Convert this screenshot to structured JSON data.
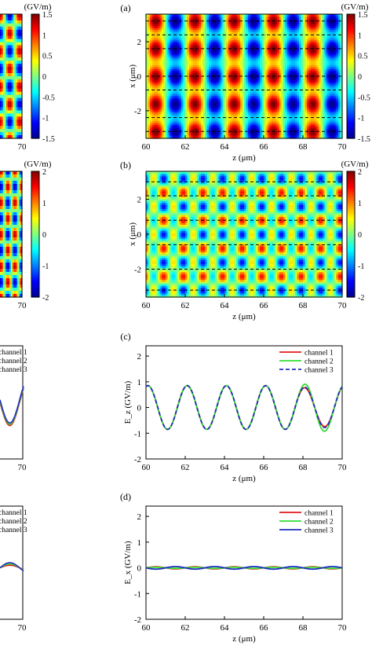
{
  "colormap": [
    "#00008f",
    "#0000ff",
    "#0080ff",
    "#00ffff",
    "#80ff80",
    "#ffff00",
    "#ff8000",
    "#ff0000",
    "#800000"
  ],
  "line_colors": {
    "channel 1": "#e41a1c",
    "channel 2": "#33dd33",
    "channel 3": "#1f2fbf"
  },
  "chart_data": [
    {
      "type": "heatmap",
      "label": "(a)",
      "xlabel": "z (μm)",
      "ylabel": "x (μm)",
      "xlim": [
        60,
        70
      ],
      "ylim": [
        -3.6,
        3.6
      ],
      "xticks": [
        "60",
        "62",
        "64",
        "66",
        "68",
        "70"
      ],
      "yticks": [
        "-2",
        "0",
        "2"
      ],
      "colorbar": {
        "unit": "(GV/m)",
        "range": [
          -1.5,
          1.5
        ],
        "ticks": [
          "1.5",
          "1",
          "0.5",
          "0",
          "-0.5",
          "-1",
          "-1.5"
        ]
      },
      "field": {
        "z_period_um": 2.0,
        "x_period_um": 1.6,
        "z_phase_um": 60.5,
        "amplitude": 1.4
      },
      "channel_boundaries_um": [
        -3.2,
        -2.4,
        -0.8,
        0.0,
        1.6,
        2.4,
        3.2
      ],
      "left_partial": {
        "colorbar_ticks": [
          "1.5",
          "1",
          "0.5",
          "0",
          "-0.5",
          "-1",
          "-1.5"
        ],
        "xtick": "70"
      }
    },
    {
      "type": "heatmap",
      "label": "(b)",
      "xlabel": "z (μm)",
      "ylabel": "x (μm)",
      "xlim": [
        60,
        70
      ],
      "ylim": [
        -3.6,
        3.6
      ],
      "xticks": [
        "60",
        "62",
        "64",
        "66",
        "68",
        "70"
      ],
      "yticks": [
        "-2",
        "0",
        "2"
      ],
      "colorbar": {
        "unit": "(GV/m)",
        "range": [
          -2,
          2
        ],
        "ticks": [
          "2",
          "1",
          "0",
          "-1",
          "-2"
        ]
      },
      "field": {
        "z_period_um": 1.0,
        "x_period_um": 1.6,
        "amplitude": 1.2
      },
      "channel_boundaries_um": [
        -3.2,
        -2.0,
        -0.6,
        0.8,
        2.2,
        3.0
      ],
      "left_partial": {
        "colorbar_ticks": [
          "2",
          "1",
          "0",
          "-1",
          "-2"
        ],
        "xtick": "70"
      }
    },
    {
      "type": "line",
      "label": "(c)",
      "xlabel": "z (μm)",
      "ylabel": "E_z (GV/m)",
      "xlim": [
        60,
        70
      ],
      "ylim": [
        -2,
        2.4
      ],
      "xticks": [
        "60",
        "62",
        "64",
        "66",
        "68",
        "70"
      ],
      "yticks": [
        "2",
        "1",
        "0",
        "-1",
        "-2"
      ],
      "legend": "top-right",
      "series": [
        {
          "name": "channel 1",
          "x": [
            60,
            60.5,
            61,
            61.5,
            62,
            62.5,
            63,
            63.5,
            64,
            64.5,
            65,
            65.5,
            66,
            66.5,
            67,
            67.5,
            68,
            68.5,
            69,
            69.5,
            70
          ],
          "y": [
            0.8,
            -0.2,
            -0.85,
            -0.2,
            0.8,
            -0.2,
            -0.85,
            -0.2,
            0.8,
            -0.2,
            -0.85,
            -0.2,
            0.8,
            -0.2,
            -0.85,
            -0.2,
            0.65,
            -0.2,
            -0.8,
            -0.2,
            0.8
          ]
        },
        {
          "name": "channel 2",
          "x": [
            60,
            60.5,
            61,
            61.5,
            62,
            62.5,
            63,
            63.5,
            64,
            64.5,
            65,
            65.5,
            66,
            66.5,
            67,
            67.5,
            68,
            68.5,
            69,
            69.5,
            70
          ],
          "y": [
            0.8,
            -0.2,
            -0.85,
            -0.2,
            0.8,
            -0.2,
            -0.85,
            -0.2,
            0.8,
            -0.2,
            -0.85,
            -0.2,
            0.8,
            -0.2,
            -0.85,
            -0.2,
            0.9,
            -0.2,
            -0.85,
            -0.2,
            0.6
          ]
        },
        {
          "name": "channel 3",
          "x": [
            60,
            60.5,
            61,
            61.5,
            62,
            62.5,
            63,
            63.5,
            64,
            64.5,
            65,
            65.5,
            66,
            66.5,
            67,
            67.5,
            68,
            68.5,
            69,
            69.5,
            70
          ],
          "y": [
            0.8,
            -0.2,
            -0.85,
            -0.2,
            0.8,
            -0.2,
            -0.85,
            -0.2,
            0.8,
            -0.2,
            -0.85,
            -0.2,
            0.8,
            -0.2,
            -0.85,
            -0.2,
            0.7,
            -0.2,
            -0.8,
            -0.2,
            0.8
          ]
        }
      ],
      "left_partial": {
        "legend": [
          "channel 1",
          "channel 2",
          "channel 3"
        ],
        "xtick": "70"
      }
    },
    {
      "type": "line",
      "label": "(d)",
      "xlabel": "z (μm)",
      "ylabel": "E_x (GV/m)",
      "xlim": [
        60,
        70
      ],
      "ylim": [
        -2,
        2.4
      ],
      "xticks": [
        "60",
        "62",
        "64",
        "66",
        "68",
        "70"
      ],
      "yticks": [
        "2",
        "1",
        "0",
        "-1",
        "-2"
      ],
      "legend": "top-right",
      "series": [
        {
          "name": "channel 1",
          "x": [
            60,
            60.5,
            61,
            61.5,
            62,
            62.5,
            63,
            63.5,
            64,
            64.5,
            65,
            65.5,
            66,
            66.5,
            67,
            67.5,
            68,
            68.5,
            69,
            69.5,
            70
          ],
          "y": [
            0,
            0.04,
            0,
            -0.04,
            0,
            0.04,
            0,
            -0.04,
            0,
            0.04,
            0,
            -0.04,
            0,
            0.04,
            0,
            -0.04,
            0,
            0.04,
            0,
            -0.04,
            0
          ]
        },
        {
          "name": "channel 2",
          "x": [
            60,
            60.5,
            61,
            61.5,
            62,
            62.5,
            63,
            63.5,
            64,
            64.5,
            65,
            65.5,
            66,
            66.5,
            67,
            67.5,
            68,
            68.5,
            69,
            69.5,
            70
          ],
          "y": [
            0,
            0.02,
            0,
            -0.02,
            0,
            0.02,
            0,
            -0.02,
            0,
            0.02,
            0,
            -0.02,
            0,
            0.02,
            0,
            -0.02,
            0,
            0.02,
            0,
            -0.02,
            0
          ]
        },
        {
          "name": "channel 3",
          "x": [
            60,
            60.5,
            61,
            61.5,
            62,
            62.5,
            63,
            63.5,
            64,
            64.5,
            65,
            65.5,
            66,
            66.5,
            67,
            67.5,
            68,
            68.5,
            69,
            69.5,
            70
          ],
          "y": [
            0,
            -0.05,
            0,
            0.05,
            0,
            -0.05,
            0,
            0.05,
            0,
            -0.05,
            0,
            0.05,
            0,
            -0.05,
            0,
            0.05,
            0,
            -0.05,
            0,
            0.05,
            0
          ]
        }
      ],
      "left_partial": {
        "legend": [
          "channel 1",
          "channel 2",
          "channel 3"
        ],
        "xtick": "70"
      }
    }
  ]
}
